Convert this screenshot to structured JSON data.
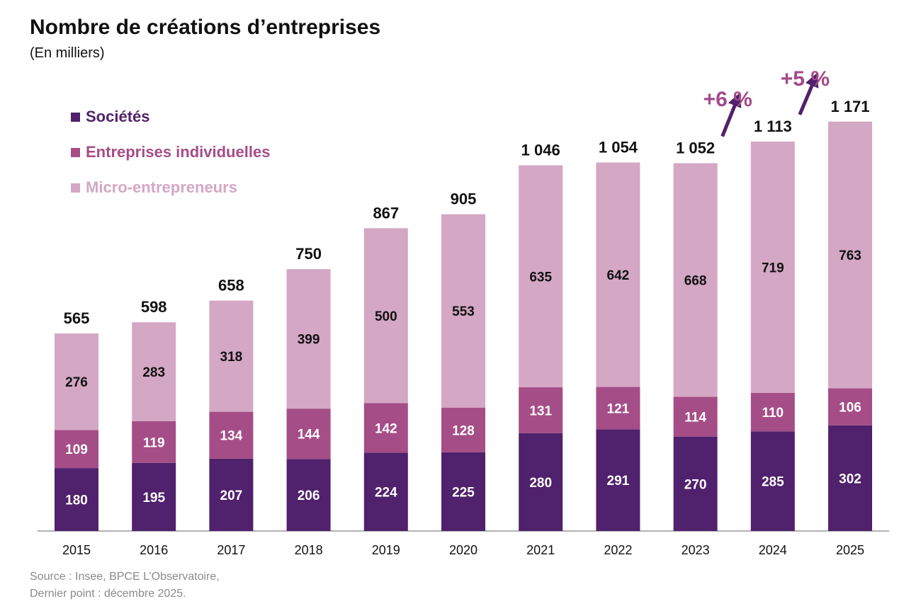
{
  "title": "Nombre de créations d’entreprises",
  "subtitle": "(En milliers)",
  "source_lines": [
    "Source : Insee, BPCE L’Observatoire,",
    "Dernier point : décembre 2025."
  ],
  "chart_data": {
    "type": "bar",
    "stacked": true,
    "categories": [
      "2015",
      "2016",
      "2017",
      "2018",
      "2019",
      "2020",
      "2021",
      "2022",
      "2023",
      "2024",
      "2025"
    ],
    "series": [
      {
        "name": "Sociétés",
        "color": "#50216c",
        "values": [
          180,
          195,
          207,
          206,
          224,
          225,
          280,
          291,
          270,
          285,
          302
        ]
      },
      {
        "name": "Entreprises individuelles",
        "color": "#a54d87",
        "values": [
          109,
          119,
          134,
          144,
          142,
          128,
          131,
          121,
          114,
          110,
          106
        ]
      },
      {
        "name": "Micro-entrepreneurs",
        "color": "#d4a7c4",
        "values": [
          276,
          283,
          318,
          399,
          500,
          553,
          635,
          642,
          668,
          719,
          763
        ]
      }
    ],
    "totals": [
      "565",
      "598",
      "658",
      "750",
      "867",
      "905",
      "1 046",
      "1 054",
      "1 052",
      "1 113",
      "1 171"
    ],
    "annotations": [
      {
        "text": "+6 %",
        "from": "2023",
        "to": "2024"
      },
      {
        "text": "+5 %",
        "from": "2024",
        "to": "2025"
      }
    ],
    "annotation_color": "#a34a8a",
    "arrow_color": "#50216c",
    "legend_position": "top-left",
    "grid": false
  }
}
